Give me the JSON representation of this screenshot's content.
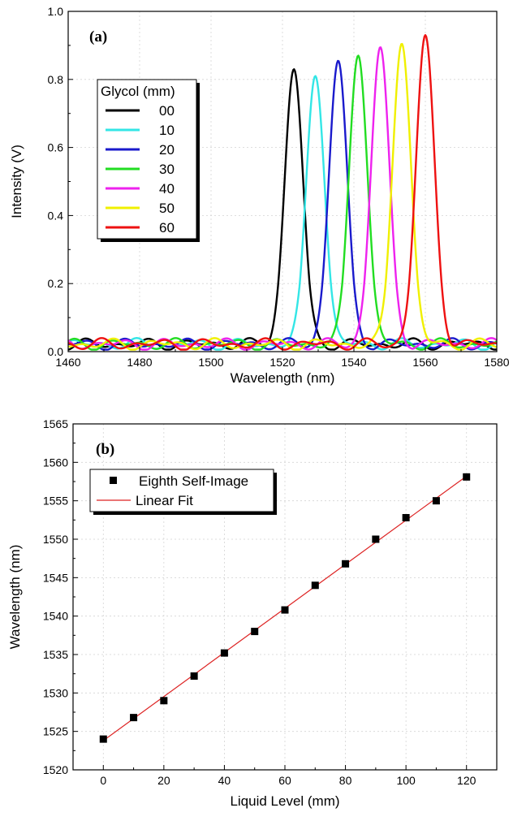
{
  "chart_data": [
    {
      "type": "line",
      "panel_label": "(a)",
      "xlabel": "Wavelength (nm)",
      "ylabel": "Intensity (V)",
      "xlim": [
        1460,
        1580
      ],
      "ylim": [
        0.0,
        1.0
      ],
      "xticks": [
        1460,
        1480,
        1500,
        1520,
        1540,
        1560,
        1580
      ],
      "yticks": [
        0.0,
        0.2,
        0.4,
        0.6,
        0.8,
        1.0
      ],
      "xtick_labels": [
        "1460",
        "1480",
        "1500",
        "1520",
        "1540",
        "1560",
        "1580"
      ],
      "ytick_labels": [
        "0.0",
        "0.2",
        "0.4",
        "0.6",
        "0.8",
        "1.0"
      ],
      "grid": true,
      "legend": {
        "title": "Glycol (mm)",
        "placement": "left"
      },
      "series": [
        {
          "name": "00",
          "color": "#000000",
          "peak_x": 1523.2,
          "peak_y": 0.83,
          "width": 2.6
        },
        {
          "name": "10",
          "color": "#33e6e6",
          "peak_x": 1529.2,
          "peak_y": 0.81,
          "width": 2.6
        },
        {
          "name": "20",
          "color": "#1a1acc",
          "peak_x": 1535.6,
          "peak_y": 0.855,
          "width": 2.6
        },
        {
          "name": "30",
          "color": "#22dd22",
          "peak_x": 1541.2,
          "peak_y": 0.87,
          "width": 2.6
        },
        {
          "name": "40",
          "color": "#ee22ee",
          "peak_x": 1547.4,
          "peak_y": 0.895,
          "width": 2.6
        },
        {
          "name": "50",
          "color": "#f0f000",
          "peak_x": 1553.4,
          "peak_y": 0.905,
          "width": 2.6
        },
        {
          "name": "60",
          "color": "#ee1111",
          "peak_x": 1560.0,
          "peak_y": 0.93,
          "width": 2.6
        }
      ]
    },
    {
      "type": "scatter",
      "panel_label": "(b)",
      "xlabel": "Liquid Level (mm)",
      "ylabel": "Wavelength (nm)",
      "xlim": [
        -10,
        130
      ],
      "ylim": [
        1520,
        1565
      ],
      "xticks": [
        0,
        20,
        40,
        60,
        80,
        100,
        120
      ],
      "yticks": [
        1520,
        1525,
        1530,
        1535,
        1540,
        1545,
        1550,
        1555,
        1560,
        1565
      ],
      "xtick_labels": [
        "0",
        "20",
        "40",
        "60",
        "80",
        "100",
        "120"
      ],
      "ytick_labels": [
        "1520",
        "1525",
        "1530",
        "1535",
        "1540",
        "1545",
        "1550",
        "1555",
        "1560",
        "1565"
      ],
      "grid": true,
      "legend": {
        "placement": "top-left"
      },
      "series": [
        {
          "name": "Eighth Self-Image",
          "marker": "square",
          "color": "#000000",
          "x": [
            0,
            10,
            20,
            30,
            40,
            50,
            60,
            70,
            80,
            90,
            100,
            110,
            120
          ],
          "y": [
            1524.0,
            1526.8,
            1529.0,
            1532.2,
            1535.2,
            1538.0,
            1540.8,
            1544.0,
            1546.8,
            1550.0,
            1552.8,
            1555.0,
            1558.1
          ]
        },
        {
          "name": "Linear Fit",
          "type": "line",
          "color": "#dd2222",
          "x": [
            0,
            120
          ],
          "y": [
            1523.8,
            1558.2
          ]
        }
      ]
    }
  ]
}
